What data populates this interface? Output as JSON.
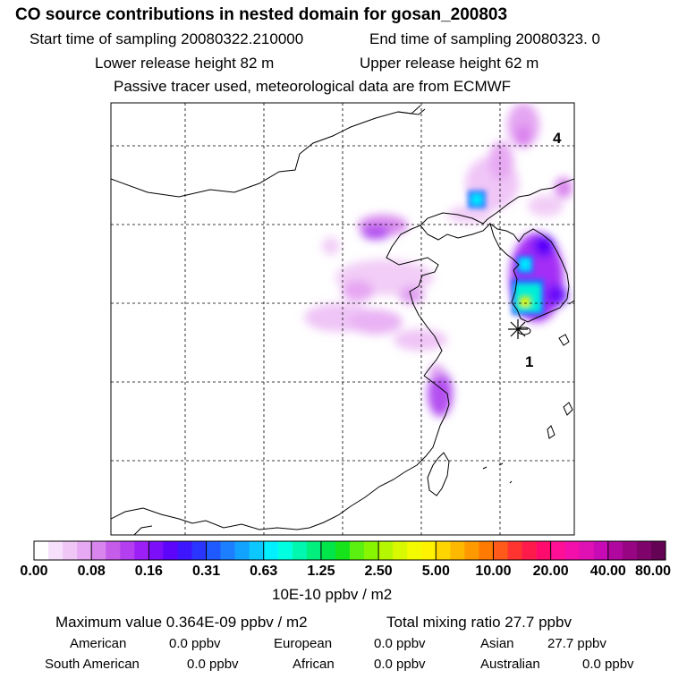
{
  "header": {
    "title": "CO  source contributions in nested domain for gosan_200803",
    "start_label": "Start time of sampling 20080322.210000",
    "end_label": "End time of sampling 20080323.     0",
    "lower_label": "Lower release height   82 m",
    "upper_label": "Upper release height   62 m",
    "tracer_note": "Passive tracer used, meteorological data are from ECMWF"
  },
  "map": {
    "markers": [
      {
        "label": "1",
        "symbol": "release-site"
      },
      {
        "label": "4",
        "symbol": "time-mark"
      }
    ]
  },
  "colorbar": {
    "unit": "10E-10 ppbv / m2",
    "tick_labels": [
      "0.00",
      "0.08",
      "0.16",
      "0.31",
      "0.63",
      "1.25",
      "2.50",
      "5.00",
      "10.00",
      "20.00",
      "40.00",
      "80.00"
    ],
    "colors": [
      "#ffffff",
      "#f7e0fb",
      "#f0c6f7",
      "#e7a9f3",
      "#d985ee",
      "#c65cea",
      "#b43ff0",
      "#9d1ff7",
      "#7d0ef9",
      "#5d05fb",
      "#3d16ff",
      "#2a35ff",
      "#1e5aff",
      "#1b7fff",
      "#11a3ff",
      "#0cc8ff",
      "#00f0ff",
      "#00ffe0",
      "#00f7b0",
      "#00ef7d",
      "#00e54a",
      "#17e31b",
      "#5cf010",
      "#88f500",
      "#b4f700",
      "#d9f900",
      "#f4fb00",
      "#fff200",
      "#ffd500",
      "#ffb800",
      "#ff9900",
      "#ff7a00",
      "#ff5a1a",
      "#ff3430",
      "#ff1a4c",
      "#ff0b6e",
      "#ff0e96",
      "#f20fab",
      "#df10b4",
      "#c80ab6",
      "#b0079f",
      "#970583",
      "#7e046b",
      "#640353"
    ]
  },
  "summary": {
    "max_value": "Maximum value  0.364E-09 ppbv / m2",
    "total_mixing": "Total mixing ratio       27.7 ppbv",
    "regions": [
      {
        "name": "American",
        "value": "0.0 ppbv"
      },
      {
        "name": "European",
        "value": "0.0 ppbv"
      },
      {
        "name": "Asian",
        "value": "27.7 ppbv"
      },
      {
        "name": "South American",
        "value": "0.0 ppbv"
      },
      {
        "name": "African",
        "value": "0.0 ppbv"
      },
      {
        "name": "Australian",
        "value": "0.0 ppbv"
      }
    ]
  }
}
